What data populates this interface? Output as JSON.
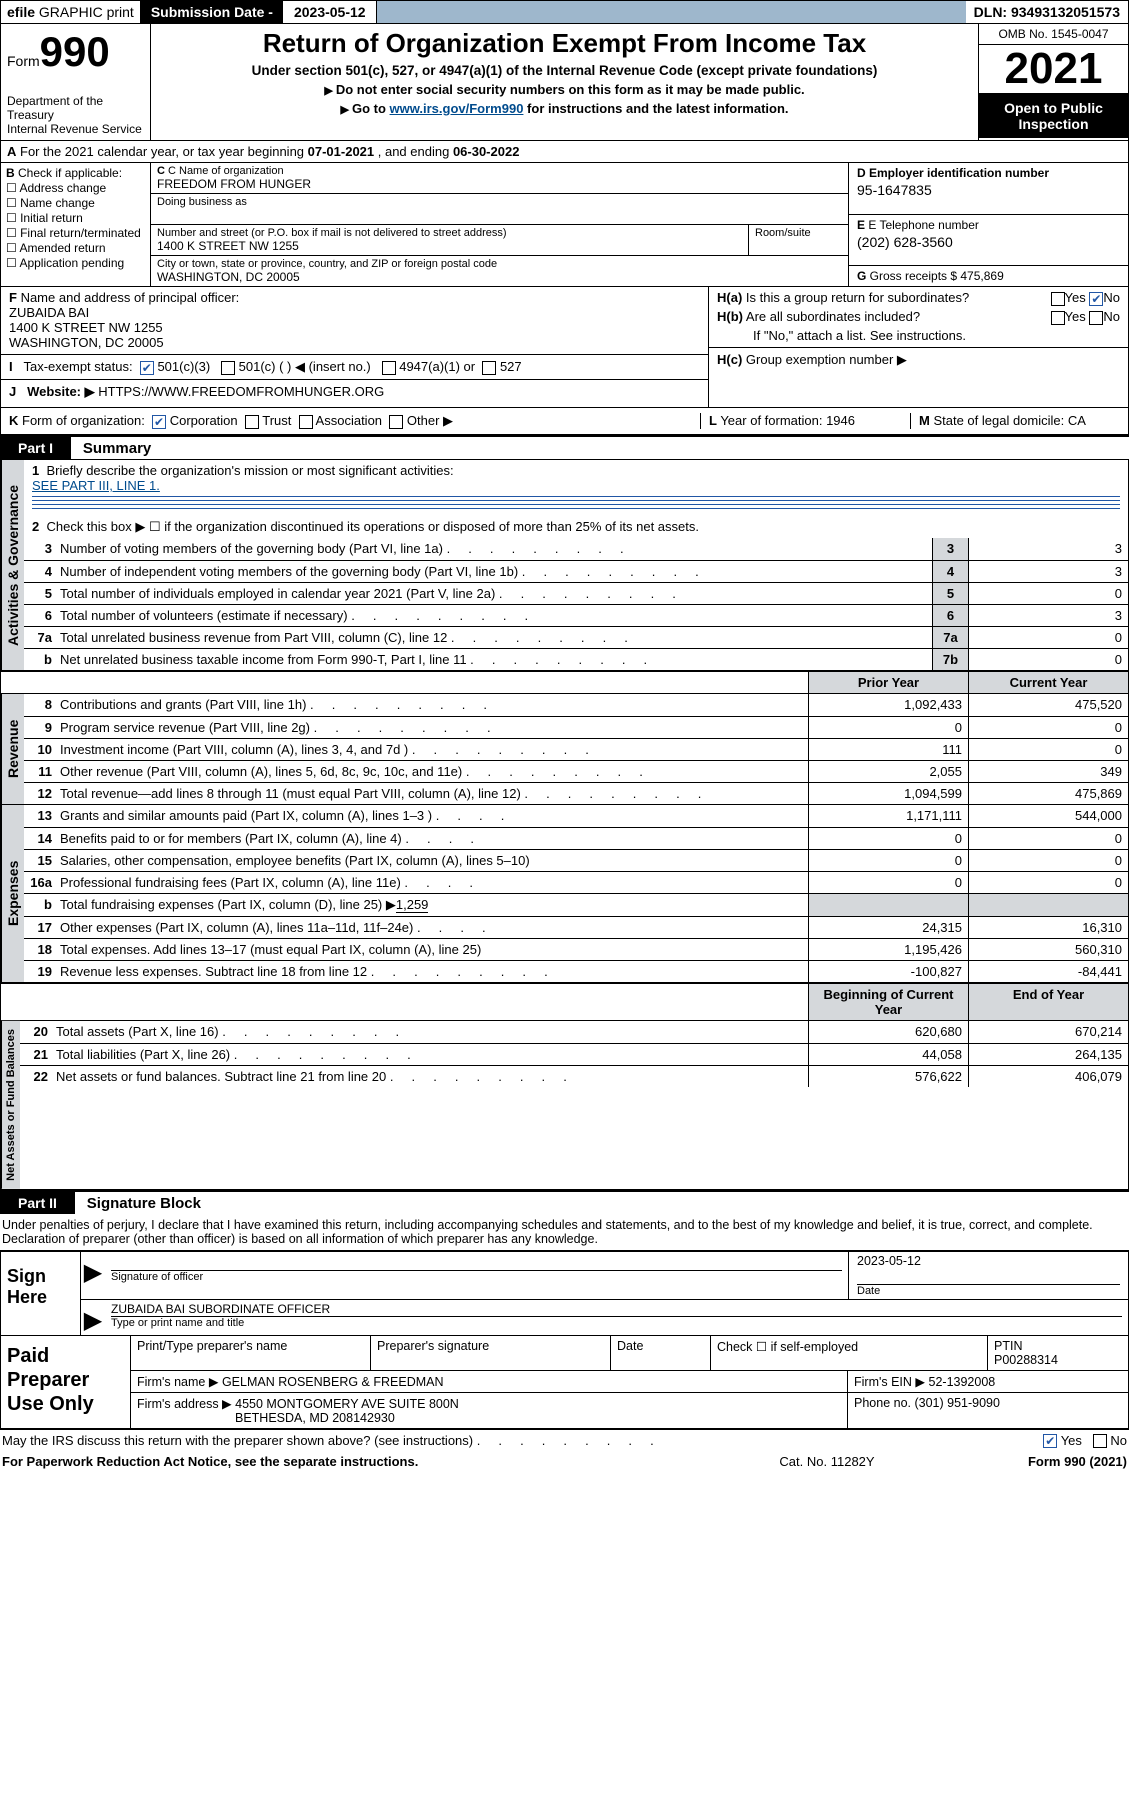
{
  "topbar": {
    "efile_prefix": "efile",
    "efile_rest": " GRAPHIC  print",
    "subdate_label": "Submission Date - ",
    "subdate": "2023-05-12",
    "dln_label": "DLN: ",
    "dln": "93493132051573"
  },
  "header": {
    "form_label": "Form",
    "form_number": "990",
    "dept": "Department of the Treasury\nInternal Revenue Service",
    "title": "Return of Organization Exempt From Income Tax",
    "sub": "Under section 501(c), 527, or 4947(a)(1) of the Internal Revenue Code (except private foundations)",
    "note1": "Do not enter social security numbers on this form as it may be made public.",
    "note2_pre": "Go to ",
    "note2_link": "www.irs.gov/Form990",
    "note2_post": " for instructions and the latest information.",
    "omb": "OMB No. 1545-0047",
    "taxyear": "2021",
    "openpub": "Open to Public Inspection"
  },
  "sectionA": {
    "text_pre": "For the 2021 calendar year, or tax year beginning ",
    "begin": "07-01-2021",
    "mid": "   , and ending ",
    "end": "06-30-2022",
    "a_label": "A"
  },
  "colB": {
    "label": "B",
    "check_label": " Check if applicable:",
    "items": [
      "Address change",
      "Name change",
      "Initial return",
      "Final return/terminated",
      "Amended return",
      "Application pending"
    ]
  },
  "colC": {
    "name_label": "C Name of organization",
    "name": "FREEDOM FROM HUNGER",
    "dba_label": "Doing business as",
    "dba": "",
    "addr_label": "Number and street (or P.O. box if mail is not delivered to street address)",
    "addr": "1400 K STREET NW 1255",
    "room_label": "Room/suite",
    "city_label": "City or town, state or province, country, and ZIP or foreign postal code",
    "city": "WASHINGTON, DC  20005"
  },
  "colD": {
    "d_label": "D Employer identification number",
    "ein": "95-1647835",
    "e_label": "E Telephone number",
    "phone": "(202) 628-3560",
    "g_label": "G",
    "g_text": " Gross receipts $ ",
    "g_val": "475,869"
  },
  "rowF": {
    "f_label": "F",
    "f_text": " Name and address of principal officer:",
    "officer": "ZUBAIDA BAI",
    "addr1": "1400 K STREET NW 1255",
    "addr2": "WASHINGTON, DC  20005",
    "ha_label": "H(a)",
    "ha_text": "  Is this a group return for subordinates?",
    "hb_label": "H(b)",
    "hb_text": "  Are all subordinates included?",
    "h_note": "If \"No,\" attach a list. See instructions.",
    "hc_label": "H(c)",
    "hc_text": "  Group exemption number ▶",
    "yes": "Yes",
    "no": "No"
  },
  "rowI": {
    "i_label": "I",
    "text": "Tax-exempt status:",
    "opt1": "501(c)(3)",
    "opt2": "501(c) (  ) ◀ (insert no.)",
    "opt3": "4947(a)(1) or",
    "opt4": "527"
  },
  "rowJ": {
    "j_label": "J",
    "text": "Website: ▶",
    "url": "  HTTPS://WWW.FREEDOMFROMHUNGER.ORG"
  },
  "rowK": {
    "k_label": "K",
    "text": " Form of organization:",
    "opts": [
      "Corporation",
      "Trust",
      "Association",
      "Other ▶"
    ],
    "l_label": "L",
    "l_text": " Year of formation: ",
    "l_val": "1946",
    "m_label": "M",
    "m_text": " State of legal domicile: ",
    "m_val": "CA"
  },
  "part1": {
    "num": "Part I",
    "title": "Summary",
    "sideA": "Activities & Governance",
    "sideR": "Revenue",
    "sideE": "Expenses",
    "sideN": "Net Assets or Fund Balances",
    "l1": "Briefly describe the organization's mission or most significant activities:",
    "l1_val": "SEE PART III, LINE 1.",
    "l2": "Check this box ▶ ☐  if the organization discontinued its operations or disposed of more than 25% of its net assets.",
    "lines_ag": [
      {
        "n": "3",
        "t": "Number of voting members of the governing body (Part VI, line 1a)",
        "box": "3",
        "v": "3"
      },
      {
        "n": "4",
        "t": "Number of independent voting members of the governing body (Part VI, line 1b)",
        "box": "4",
        "v": "3"
      },
      {
        "n": "5",
        "t": "Total number of individuals employed in calendar year 2021 (Part V, line 2a)",
        "box": "5",
        "v": "0"
      },
      {
        "n": "6",
        "t": "Total number of volunteers (estimate if necessary)",
        "box": "6",
        "v": "3"
      },
      {
        "n": "7a",
        "t": "Total unrelated business revenue from Part VIII, column (C), line 12",
        "box": "7a",
        "v": "0"
      },
      {
        "n": "b",
        "t": "Net unrelated business taxable income from Form 990-T, Part I, line 11",
        "box": "7b",
        "v": "0"
      }
    ],
    "col_prior": "Prior Year",
    "col_current": "Current Year",
    "lines_rev": [
      {
        "n": "8",
        "t": "Contributions and grants (Part VIII, line 1h)",
        "p": "1,092,433",
        "c": "475,520"
      },
      {
        "n": "9",
        "t": "Program service revenue (Part VIII, line 2g)",
        "p": "0",
        "c": "0"
      },
      {
        "n": "10",
        "t": "Investment income (Part VIII, column (A), lines 3, 4, and 7d )",
        "p": "111",
        "c": "0"
      },
      {
        "n": "11",
        "t": "Other revenue (Part VIII, column (A), lines 5, 6d, 8c, 9c, 10c, and 11e)",
        "p": "2,055",
        "c": "349"
      },
      {
        "n": "12",
        "t": "Total revenue—add lines 8 through 11 (must equal Part VIII, column (A), line 12)",
        "p": "1,094,599",
        "c": "475,869"
      }
    ],
    "lines_exp": [
      {
        "n": "13",
        "t": "Grants and similar amounts paid (Part IX, column (A), lines 1–3 )",
        "p": "1,171,111",
        "c": "544,000",
        "dots": "dotsS"
      },
      {
        "n": "14",
        "t": "Benefits paid to or for members (Part IX, column (A), line 4)",
        "p": "0",
        "c": "0",
        "dots": "dotsS"
      },
      {
        "n": "15",
        "t": "Salaries, other compensation, employee benefits (Part IX, column (A), lines 5–10)",
        "p": "0",
        "c": "0",
        "dots": ""
      },
      {
        "n": "16a",
        "t": "Professional fundraising fees (Part IX, column (A), line 11e)",
        "p": "0",
        "c": "0",
        "dots": "dotsS"
      }
    ],
    "l16b_pre": "Total fundraising expenses (Part IX, column (D), line 25) ▶",
    "l16b_val": "1,259",
    "lines_exp2": [
      {
        "n": "17",
        "t": "Other expenses (Part IX, column (A), lines 11a–11d, 11f–24e)",
        "p": "24,315",
        "c": "16,310",
        "dots": "dotsS"
      },
      {
        "n": "18",
        "t": "Total expenses. Add lines 13–17 (must equal Part IX, column (A), line 25)",
        "p": "1,195,426",
        "c": "560,310",
        "dots": ""
      },
      {
        "n": "19",
        "t": "Revenue less expenses. Subtract line 18 from line 12",
        "p": "-100,827",
        "c": "-84,441",
        "dots": "dots"
      }
    ],
    "col_begin": "Beginning of Current Year",
    "col_end": "End of Year",
    "lines_net": [
      {
        "n": "20",
        "t": "Total assets (Part X, line 16)",
        "p": "620,680",
        "c": "670,214"
      },
      {
        "n": "21",
        "t": "Total liabilities (Part X, line 26)",
        "p": "44,058",
        "c": "264,135"
      },
      {
        "n": "22",
        "t": "Net assets or fund balances. Subtract line 21 from line 20",
        "p": "576,622",
        "c": "406,079"
      }
    ]
  },
  "part2": {
    "num": "Part II",
    "title": "Signature Block",
    "decl": "Under penalties of perjury, I declare that I have examined this return, including accompanying schedules and statements, and to the best of my knowledge and belief, it is true, correct, and complete. Declaration of preparer (other than officer) is based on all information of which preparer has any knowledge.",
    "sign_here": "Sign Here",
    "sig_officer_label": "Signature of officer",
    "sig_date_label": "Date",
    "sig_date": "2023-05-12",
    "officer_name": "ZUBAIDA BAI SUBORDINATE OFFICER",
    "officer_name_label": "Type or print name and title",
    "paid": "Paid Preparer Use Only",
    "prep_name_label": "Print/Type preparer's name",
    "prep_sig_label": "Preparer's signature",
    "date_label": "Date",
    "check_self": "Check ☐  if self-employed",
    "ptin_label": "PTIN",
    "ptin": "P00288314",
    "firm_name_label": "Firm's name    ▶ ",
    "firm_name": "GELMAN ROSENBERG & FREEDMAN",
    "firm_ein_label": "Firm's EIN ▶ ",
    "firm_ein": "52-1392008",
    "firm_addr_label": "Firm's address ▶ ",
    "firm_addr": "4550 MONTGOMERY AVE SUITE 800N",
    "firm_city": "BETHESDA, MD  208142930",
    "phone_label": "Phone no. ",
    "phone": "(301) 951-9090"
  },
  "footer": {
    "discuss": "May the IRS discuss this return with the preparer shown above? (see instructions)",
    "yes": "Yes",
    "no": "No",
    "paperwork": "For Paperwork Reduction Act Notice, see the separate instructions.",
    "catno": "Cat. No. 11282Y",
    "formno": "Form 990 (2021)"
  }
}
